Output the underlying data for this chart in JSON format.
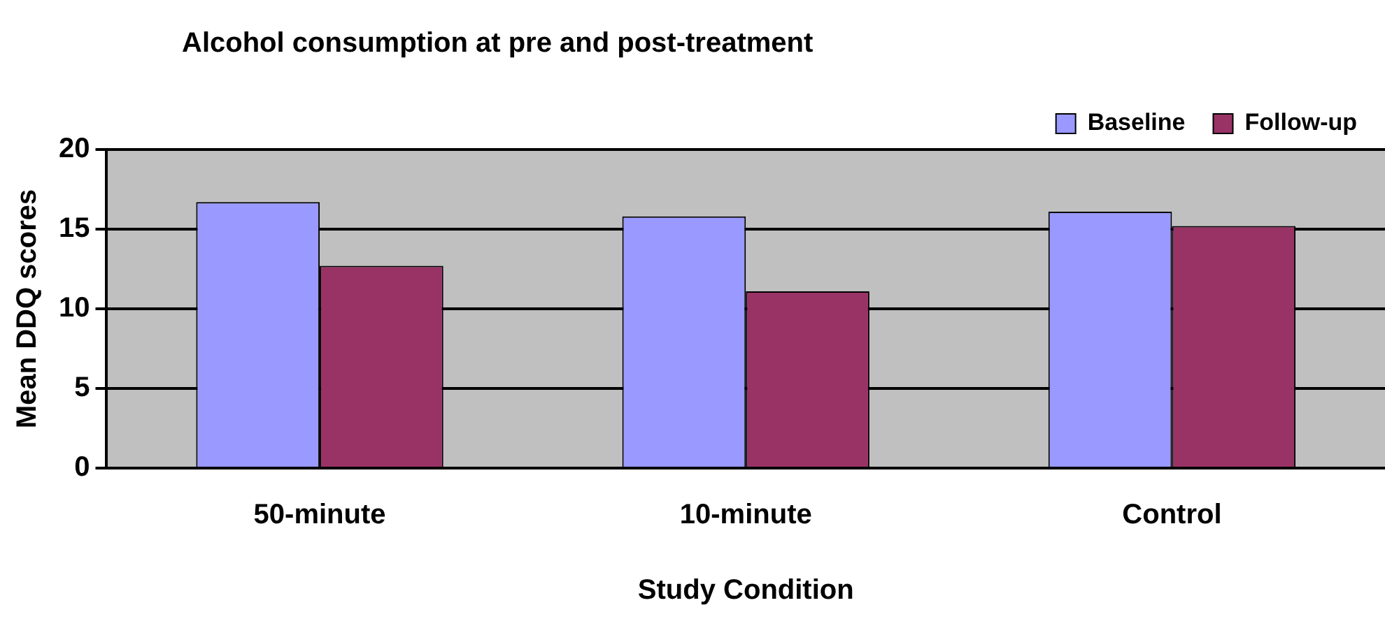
{
  "chart_data": {
    "type": "bar",
    "title": "Alcohol consumption at pre and post-treatment",
    "xlabel": "Study Condition",
    "ylabel": "Mean DDQ scores",
    "categories": [
      "50-minute",
      "10-minute",
      "Control"
    ],
    "series": [
      {
        "name": "Baseline",
        "color": "#9999ff",
        "values": [
          16.7,
          15.8,
          16.1
        ]
      },
      {
        "name": "Follow-up",
        "color": "#993366",
        "values": [
          12.7,
          11.1,
          15.2
        ]
      }
    ],
    "ylim": [
      0,
      20
    ],
    "yticks": [
      0,
      5,
      10,
      15,
      20
    ],
    "grid": "y",
    "legend": "top right"
  }
}
